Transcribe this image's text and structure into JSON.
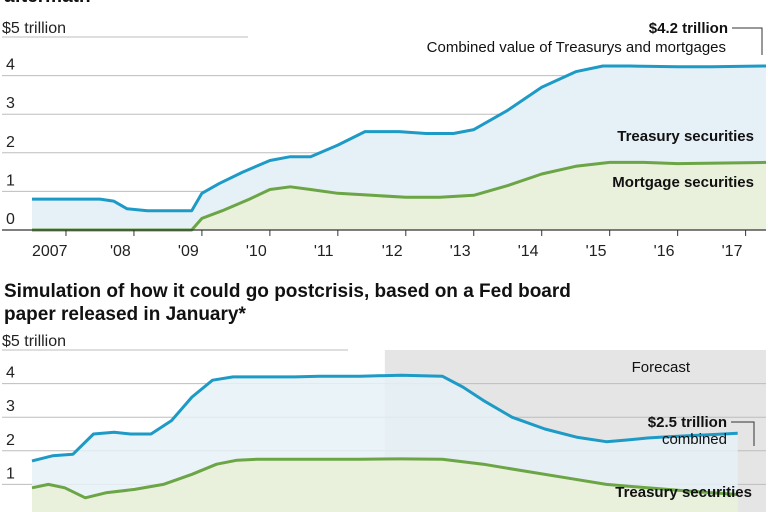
{
  "chart_data": [
    {
      "type": "area",
      "title": "aftermath",
      "ylabel": "$5 trillion",
      "ylim": [
        0,
        5
      ],
      "y_ticks": [
        "0",
        "1",
        "2",
        "3",
        "4"
      ],
      "x_ticks": [
        "2007",
        "'08",
        "'09",
        "'10",
        "'11",
        "'12",
        "'13",
        "'14",
        "'15",
        "'16",
        "'17"
      ],
      "xlim": [
        2006.5,
        2017.3
      ],
      "colors": {
        "total": "#1e9ac6",
        "mortgage": "#6ba545",
        "total_fill": "#e6f1f7",
        "mortgage_fill": "#e9f0dc"
      },
      "series": [
        {
          "name": "Combined value of Treasurys and mortgages",
          "x": [
            2006.5,
            2007.5,
            2007.7,
            2007.9,
            2008.2,
            2008.5,
            2008.85,
            2009.0,
            2009.25,
            2009.6,
            2010.0,
            2010.3,
            2010.6,
            2011.0,
            2011.4,
            2011.9,
            2012.3,
            2012.7,
            2013.0,
            2013.5,
            2014.0,
            2014.5,
            2014.9,
            2015.3,
            2016.0,
            2016.5,
            2017.3
          ],
          "values": [
            0.8,
            0.8,
            0.75,
            0.55,
            0.5,
            0.5,
            0.5,
            0.95,
            1.2,
            1.5,
            1.8,
            1.9,
            1.9,
            2.2,
            2.55,
            2.55,
            2.5,
            2.5,
            2.6,
            3.1,
            3.7,
            4.1,
            4.25,
            4.25,
            4.23,
            4.23,
            4.25
          ]
        },
        {
          "name": "Mortgage securities",
          "x": [
            2006.5,
            2008.8,
            2008.85,
            2009.0,
            2009.3,
            2009.7,
            2010.0,
            2010.3,
            2010.6,
            2011.0,
            2011.5,
            2012.0,
            2012.5,
            2013.0,
            2013.5,
            2014.0,
            2014.5,
            2015.0,
            2015.5,
            2016.0,
            2017.3
          ],
          "values": [
            0,
            0,
            0,
            0.3,
            0.5,
            0.8,
            1.05,
            1.12,
            1.05,
            0.95,
            0.9,
            0.85,
            0.85,
            0.9,
            1.15,
            1.45,
            1.65,
            1.75,
            1.75,
            1.72,
            1.75
          ]
        }
      ],
      "labels": {
        "total_value": "$4.2 trillion",
        "combined_note": "Combined value of Treasurys and mortgages",
        "treasury": "Treasury securities",
        "mortgage": "Mortgage securities"
      }
    },
    {
      "type": "area",
      "title_lines": [
        "Simulation of how it could go postcrisis, based on a Fed board",
        "paper released in January*"
      ],
      "ylabel": "$5 trillion",
      "ylim": [
        0,
        5
      ],
      "y_ticks": [
        "1",
        "2",
        "3",
        "4"
      ],
      "forecast_label": "Forecast",
      "forecast_start": 2017.6,
      "xlim": [
        2009.0,
        2026.5
      ],
      "series": [
        {
          "name": "combined",
          "x": [
            2009.0,
            2009.5,
            2010.0,
            2010.5,
            2011.0,
            2011.4,
            2011.9,
            2012.4,
            2012.9,
            2013.4,
            2013.9,
            2014.4,
            2014.9,
            2015.4,
            2016.0,
            2017.0,
            2018.0,
            2019.0,
            2019.5,
            2020.0,
            2020.7,
            2021.5,
            2022.3,
            2023.0,
            2023.5,
            2024.0,
            2024.5,
            2025.0,
            2025.5,
            2026.2
          ],
          "values": [
            1.7,
            1.85,
            1.9,
            2.5,
            2.55,
            2.5,
            2.5,
            2.9,
            3.6,
            4.1,
            4.2,
            4.2,
            4.2,
            4.2,
            4.22,
            4.22,
            4.25,
            4.22,
            3.9,
            3.5,
            3.0,
            2.65,
            2.4,
            2.27,
            2.32,
            2.38,
            2.42,
            2.45,
            2.48,
            2.52
          ]
        },
        {
          "name": "Treasury securities",
          "x": [
            2009.0,
            2009.4,
            2009.8,
            2010.3,
            2010.8,
            2011.5,
            2012.2,
            2012.9,
            2013.5,
            2014.0,
            2014.5,
            2015.0,
            2016.0,
            2017.0,
            2018.0,
            2019.0,
            2020.0,
            2021.0,
            2022.0,
            2023.0,
            2024.0,
            2025.0,
            2026.2
          ],
          "values": [
            0.9,
            1.0,
            0.9,
            0.6,
            0.75,
            0.85,
            1.0,
            1.3,
            1.6,
            1.72,
            1.75,
            1.75,
            1.75,
            1.75,
            1.76,
            1.75,
            1.6,
            1.4,
            1.2,
            1.0,
            0.9,
            0.8,
            0.7
          ]
        }
      ],
      "labels": {
        "combined_value": "$2.5 trillion",
        "combined_note": "combined",
        "treasury": "Treasury securities"
      }
    }
  ]
}
